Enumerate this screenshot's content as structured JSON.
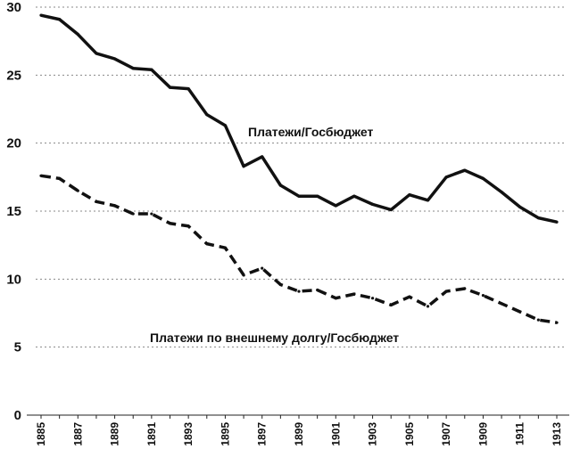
{
  "chart_data": {
    "type": "line",
    "title": "",
    "xlabel": "",
    "ylabel": "",
    "xlim": [
      1885,
      1913
    ],
    "ylim": [
      0,
      30
    ],
    "y_ticks": [
      0,
      5,
      10,
      15,
      20,
      25,
      30
    ],
    "x_tick_labels": [
      "1885",
      "1887",
      "1889",
      "1891",
      "1893",
      "1895",
      "1897",
      "1899",
      "1901",
      "1903",
      "1905",
      "1907",
      "1909",
      "1911",
      "1913"
    ],
    "grid": true,
    "legend": "none (series labelled inline)",
    "x": [
      1885,
      1886,
      1887,
      1888,
      1889,
      1890,
      1891,
      1892,
      1893,
      1894,
      1895,
      1896,
      1897,
      1898,
      1899,
      1900,
      1901,
      1902,
      1903,
      1904,
      1905,
      1906,
      1907,
      1908,
      1909,
      1910,
      1911,
      1912,
      1913
    ],
    "series": [
      {
        "name": "Платежи/Госбюджет",
        "style": "solid",
        "color": "#111111",
        "values": [
          29.4,
          29.1,
          28.0,
          26.6,
          26.2,
          25.5,
          25.4,
          24.1,
          24.0,
          22.1,
          21.3,
          18.3,
          19.0,
          16.9,
          16.1,
          16.1,
          15.4,
          16.1,
          15.5,
          15.1,
          16.2,
          15.8,
          17.5,
          18.0,
          17.4,
          16.4,
          15.3,
          14.5,
          14.2
        ]
      },
      {
        "name": "Платежи по внешнему долгу/Госбюджет",
        "style": "dashed",
        "color": "#111111",
        "values": [
          17.6,
          17.4,
          16.5,
          15.7,
          15.4,
          14.8,
          14.8,
          14.1,
          13.9,
          12.6,
          12.3,
          10.3,
          10.8,
          9.6,
          9.1,
          9.2,
          8.6,
          8.9,
          8.6,
          8.1,
          8.7,
          8.0,
          9.1,
          9.3,
          8.8,
          8.2,
          7.6,
          7.0,
          6.8
        ]
      }
    ]
  }
}
